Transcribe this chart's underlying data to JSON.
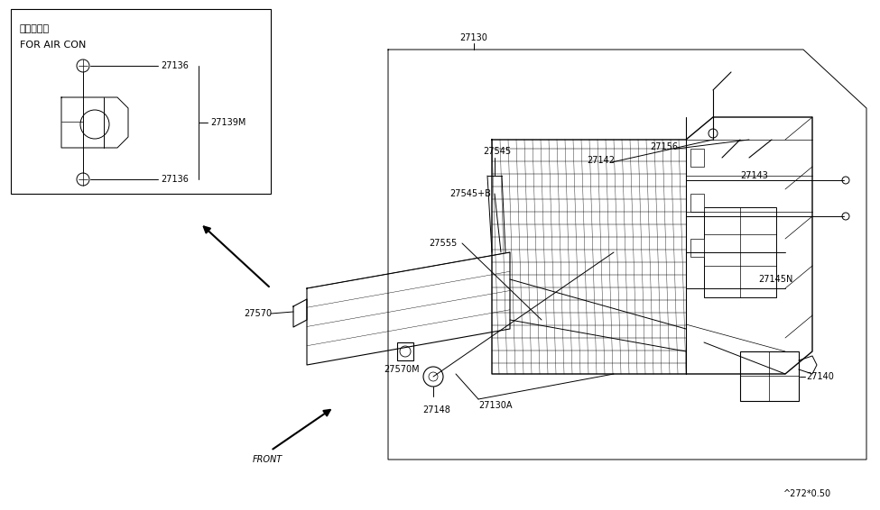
{
  "bg_color": "#ffffff",
  "line_color": "#000000",
  "fig_width": 9.75,
  "fig_height": 5.66,
  "dpi": 100,
  "watermark": "^272*0.50",
  "label_for_air_con_jp": "エアコン用",
  "label_for_air_con_en": "FOR AIR CON"
}
